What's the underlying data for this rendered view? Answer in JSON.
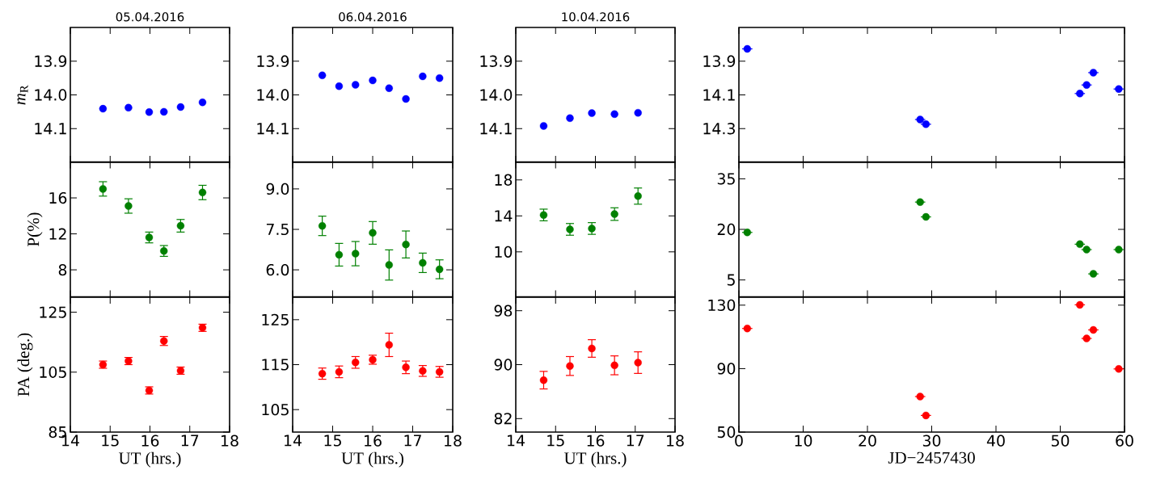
{
  "chart_data": [
    {
      "type": "scatter",
      "title": "05.04.2016",
      "ylabel": "*m*$_{R}$",
      "color": "#0000ff",
      "marker": "circle",
      "tick_labels": "y",
      "x": [
        14.82,
        15.46,
        15.98,
        16.35,
        16.77,
        17.32
      ],
      "values": [
        14.041,
        14.038,
        14.051,
        14.05,
        14.036,
        14.022
      ],
      "xlim": [
        14,
        18
      ],
      "xticks": [
        14,
        15,
        16,
        17,
        18
      ],
      "ylim": [
        14.2,
        13.8
      ],
      "yticks": [
        13.9,
        {
          "value": 14.0,
          "label": "14.0"
        },
        14.1
      ]
    },
    {
      "type": "scatter",
      "title": "06.04.2016",
      "color": "#0000ff",
      "marker": "circle",
      "tick_labels": "y",
      "x": [
        14.74,
        15.16,
        15.57,
        16.0,
        16.41,
        16.83,
        17.25,
        17.67
      ],
      "values": [
        13.942,
        13.974,
        13.97,
        13.957,
        13.98,
        14.012,
        13.945,
        13.95
      ],
      "xlim": [
        14,
        18
      ],
      "xticks": [
        14,
        15,
        16,
        17,
        18
      ],
      "ylim": [
        14.2,
        13.8
      ],
      "yticks": [
        13.9,
        {
          "value": 14.0,
          "label": "14.0"
        },
        14.1
      ]
    },
    {
      "type": "scatter",
      "title": "10.04.2016",
      "color": "#0000ff",
      "marker": "circle",
      "tick_labels": "y",
      "x": [
        14.7,
        15.36,
        15.91,
        16.48,
        17.07
      ],
      "values": [
        14.092,
        14.069,
        14.054,
        14.057,
        14.053
      ],
      "xlim": [
        14,
        18
      ],
      "xticks": [
        14,
        15,
        16,
        17,
        18
      ],
      "ylim": [
        14.2,
        13.8
      ],
      "yticks": [
        13.9,
        {
          "value": 14.0,
          "label": "14.0"
        },
        14.1
      ]
    },
    {
      "type": "scatter",
      "color": "#0000ff",
      "marker": "circle",
      "tick_labels": "y",
      "x": [
        1.3,
        28.2,
        29.1,
        53.05,
        54.1,
        55.15,
        59.1
      ],
      "values": [
        13.827,
        14.246,
        14.274,
        14.092,
        14.041,
        13.968,
        14.065
      ],
      "xerrors": [
        0.8,
        0.8,
        0.8,
        0.8,
        0.8,
        0.8,
        0.8
      ],
      "xlim": [
        0,
        60
      ],
      "xticks": [
        0,
        10,
        20,
        30,
        40,
        50,
        60
      ],
      "ylim": [
        14.5,
        13.7
      ],
      "yticks": [
        13.9,
        14.1,
        14.3
      ]
    },
    {
      "type": "scatter",
      "ylabel": "P(%)",
      "color": "#008000",
      "marker": "circle",
      "tick_labels": "y",
      "x": [
        14.82,
        15.46,
        15.98,
        16.35,
        16.77,
        17.32
      ],
      "values": [
        17.0,
        15.1,
        11.6,
        10.1,
        12.9,
        16.6
      ],
      "errors": [
        0.8,
        0.8,
        0.6,
        0.6,
        0.7,
        0.8
      ],
      "xlim": [
        14,
        18
      ],
      "xticks": [
        14,
        15,
        16,
        17,
        18
      ],
      "ylim": [
        5,
        20
      ],
      "yticks": [
        8,
        12,
        16
      ]
    },
    {
      "type": "scatter",
      "color": "#008000",
      "marker": "circle",
      "tick_labels": "y",
      "x": [
        14.74,
        15.16,
        15.57,
        16.0,
        16.41,
        16.83,
        17.25,
        17.67
      ],
      "values": [
        7.63,
        6.56,
        6.6,
        7.37,
        6.18,
        6.94,
        6.26,
        6.02
      ],
      "errors": [
        0.36,
        0.42,
        0.45,
        0.42,
        0.56,
        0.5,
        0.36,
        0.35
      ],
      "xlim": [
        14,
        18
      ],
      "xticks": [
        14,
        15,
        16,
        17,
        18
      ],
      "ylim": [
        5,
        10
      ],
      "yticks": [
        {
          "value": 6,
          "label": "6.0"
        },
        7.5,
        {
          "value": 9,
          "label": "9.0"
        }
      ]
    },
    {
      "type": "scatter",
      "color": "#008000",
      "marker": "circle",
      "tick_labels": "y",
      "x": [
        14.7,
        15.36,
        15.91,
        16.48,
        17.07
      ],
      "values": [
        14.1,
        12.5,
        12.6,
        14.2,
        16.2
      ],
      "errors": [
        0.65,
        0.65,
        0.65,
        0.7,
        0.9
      ],
      "xlim": [
        14,
        18
      ],
      "xticks": [
        14,
        15,
        16,
        17,
        18
      ],
      "ylim": [
        5,
        20
      ],
      "yticks": [
        10,
        14,
        18
      ]
    },
    {
      "type": "scatter",
      "color": "#008000",
      "marker": "circle",
      "tick_labels": "y",
      "x": [
        1.3,
        28.2,
        29.1,
        53.05,
        54.1,
        55.15,
        59.1
      ],
      "values": [
        19.1,
        28.1,
        23.7,
        15.6,
        14.0,
        6.8,
        14.0
      ],
      "xerrors": [
        0.8,
        0.8,
        0.8,
        0.8,
        0.8,
        0.8,
        0.8
      ],
      "xlim": [
        0,
        60
      ],
      "xticks": [
        0,
        10,
        20,
        30,
        40,
        50,
        60
      ],
      "ylim": [
        0,
        40
      ],
      "yticks": [
        5,
        20,
        35
      ]
    },
    {
      "type": "scatter",
      "ylabel": "PA (deg.)",
      "xlabel": "UT (hrs.)",
      "color": "#ff0000",
      "marker": "circle",
      "x": [
        14.82,
        15.46,
        15.98,
        16.35,
        16.77,
        17.32
      ],
      "values": [
        107.5,
        108.7,
        98.9,
        115.4,
        105.5,
        119.8
      ],
      "errors": [
        1.2,
        1.2,
        1.2,
        1.5,
        1.2,
        1.2
      ],
      "xlim": [
        14,
        18
      ],
      "xticks": [
        14,
        15,
        16,
        17,
        18
      ],
      "ylim": [
        85,
        130
      ],
      "yticks": [
        85,
        105,
        125
      ]
    },
    {
      "type": "scatter",
      "xlabel": "UT (hrs.)",
      "color": "#ff0000",
      "marker": "circle",
      "x": [
        14.74,
        15.16,
        15.57,
        16.0,
        16.41,
        16.83,
        17.25,
        17.67
      ],
      "values": [
        113.0,
        113.4,
        115.5,
        116.1,
        119.4,
        114.4,
        113.6,
        113.4
      ],
      "errors": [
        1.25,
        1.3,
        1.3,
        1.0,
        2.6,
        1.4,
        1.2,
        1.2
      ],
      "xlim": [
        14,
        18
      ],
      "xticks": [
        14,
        15,
        16,
        17,
        18
      ],
      "ylim": [
        100,
        130
      ],
      "yticks": [
        105,
        115,
        125
      ]
    },
    {
      "type": "scatter",
      "xlabel": "UT (hrs.)",
      "color": "#ff0000",
      "marker": "circle",
      "x": [
        14.7,
        15.36,
        15.91,
        16.48,
        17.07
      ],
      "values": [
        87.7,
        89.8,
        92.4,
        89.9,
        90.3
      ],
      "errors": [
        1.3,
        1.4,
        1.3,
        1.4,
        1.6
      ],
      "xlim": [
        14,
        18
      ],
      "xticks": [
        14,
        15,
        16,
        17,
        18
      ],
      "ylim": [
        80,
        100
      ],
      "yticks": [
        82,
        90,
        98
      ]
    },
    {
      "type": "scatter",
      "xlabel": "JD−2457430",
      "color": "#ff0000",
      "marker": "circle",
      "x": [
        1.3,
        28.2,
        29.1,
        53.05,
        54.1,
        55.15,
        59.1
      ],
      "values": [
        115.3,
        72.4,
        60.5,
        130.2,
        109.0,
        114.4,
        89.8
      ],
      "xerrors": [
        0.8,
        0.8,
        0.8,
        0.8,
        0.8,
        0.8,
        0.8
      ],
      "xlim": [
        0,
        60
      ],
      "xticks": [
        0,
        10,
        20,
        30,
        40,
        50,
        60
      ],
      "ylim": [
        50,
        135
      ],
      "yticks": [
        50,
        90,
        130
      ]
    }
  ]
}
